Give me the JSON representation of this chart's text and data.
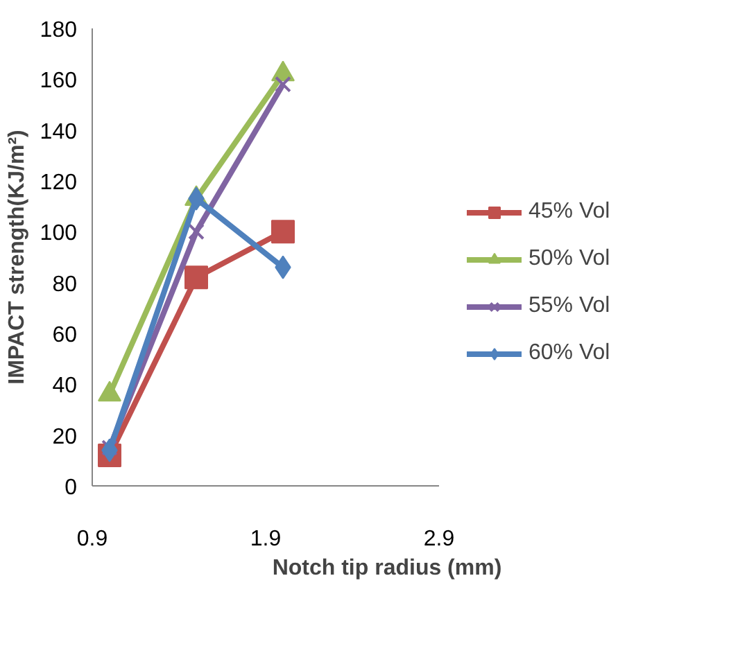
{
  "chart_data": {
    "type": "line",
    "xlabel": "Notch tip radius (mm)",
    "ylabel": "IMPACT strength(KJ/m²)",
    "x": [
      1,
      1.5,
      2
    ],
    "series": [
      {
        "name": "45% Vol",
        "color": "#c0504d",
        "marker": "square",
        "values": [
          12,
          82,
          100
        ]
      },
      {
        "name": "50% Vol",
        "color": "#9bbb59",
        "marker": "triangle",
        "values": [
          36,
          113,
          162
        ]
      },
      {
        "name": "55% Vol",
        "color": "#8064a2",
        "marker": "cross",
        "values": [
          15,
          100,
          158
        ]
      },
      {
        "name": "60% Vol",
        "color": "#4f81bd",
        "marker": "diamond",
        "values": [
          14,
          113,
          86
        ]
      }
    ],
    "xlim": [
      0.9,
      2.9
    ],
    "xticks": [
      0.9,
      1.9,
      2.9
    ],
    "ylim": [
      0,
      180
    ],
    "yticks": [
      0,
      20,
      40,
      60,
      80,
      100,
      120,
      140,
      160,
      180
    ],
    "grid": false,
    "legend": "right",
    "line_style": "solid"
  }
}
